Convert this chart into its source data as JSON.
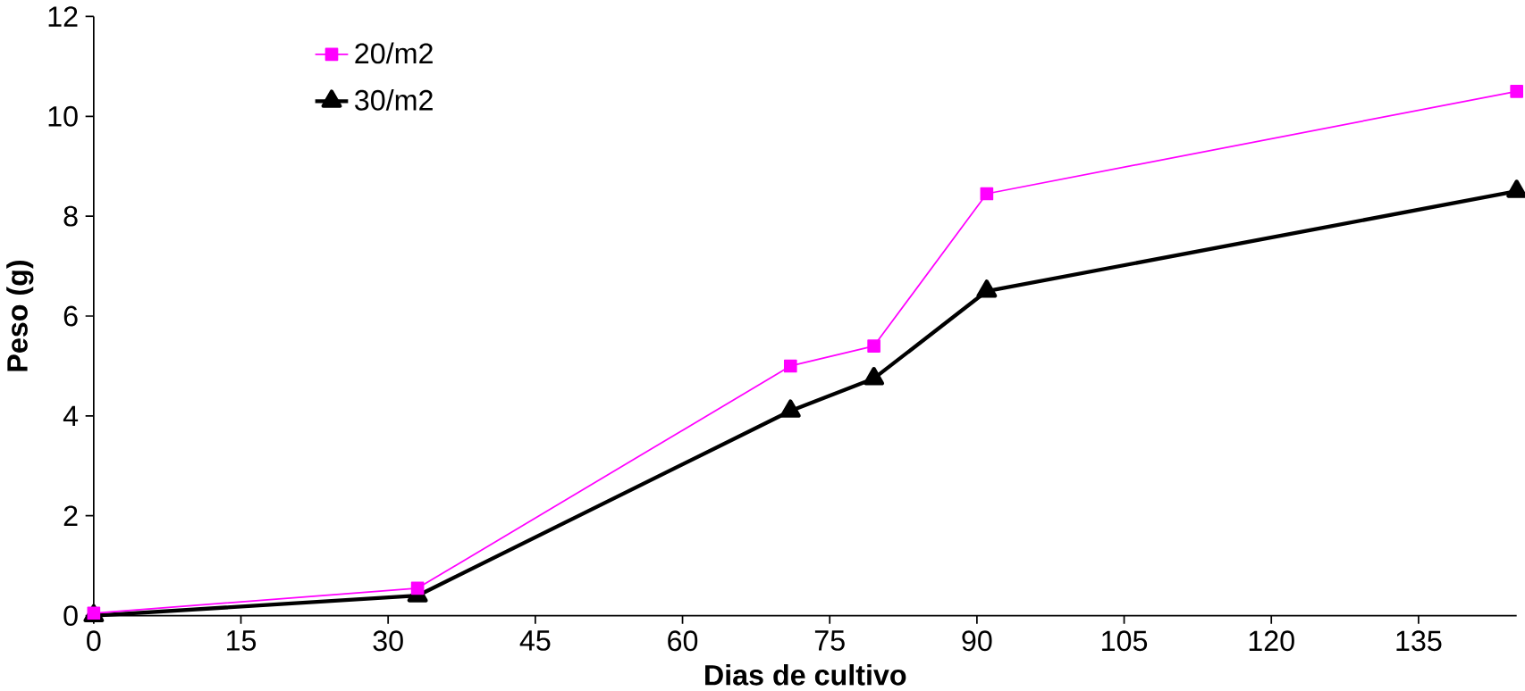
{
  "chart_data": {
    "type": "line",
    "xlabel": "Dias de cultivo",
    "ylabel": "Peso (g)",
    "xlim": [
      0,
      145
    ],
    "ylim": [
      0,
      12
    ],
    "xticks": [
      0,
      15,
      30,
      45,
      60,
      75,
      90,
      105,
      120,
      135
    ],
    "yticks": [
      0,
      2,
      4,
      6,
      8,
      10,
      12
    ],
    "legend": "top left",
    "grid": false,
    "series": [
      {
        "name": "20/m2",
        "color": "#ff00ff",
        "marker": "square",
        "x": [
          0,
          33,
          71,
          79.5,
          91,
          145
        ],
        "values": [
          0.05,
          0.55,
          5.0,
          5.4,
          8.45,
          10.5
        ]
      },
      {
        "name": "30/m2",
        "color": "#000000",
        "marker": "triangle",
        "x": [
          0,
          33,
          71,
          79.5,
          91,
          145
        ],
        "values": [
          0,
          0.4,
          4.1,
          4.75,
          6.5,
          8.5
        ]
      }
    ]
  }
}
